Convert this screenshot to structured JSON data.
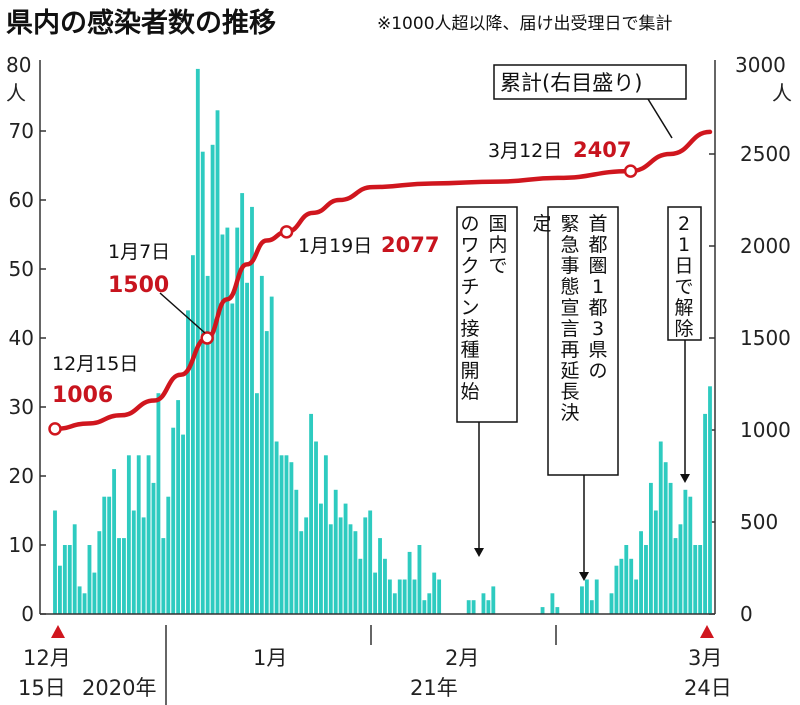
{
  "title": "県内の感染者数の推移",
  "subtitle": "※1000人超以降、届け出受理日で集計",
  "axis": {
    "left_unit_value": "80",
    "left_unit": "人",
    "right_unit_value": "3000",
    "right_unit": "人",
    "left_ticks": [
      "0",
      "10",
      "20",
      "30",
      "40",
      "50",
      "60",
      "70"
    ],
    "right_ticks": [
      "0",
      "500",
      "1000",
      "1500",
      "2000",
      "2500"
    ],
    "x_start_month": "12月",
    "x_start_day": "15日",
    "year_2020": "2020年",
    "month_1": "1月",
    "month_2": "2月",
    "year_21": "21年",
    "x_end_month": "3月",
    "x_end_day": "24日"
  },
  "annotations": {
    "cumulative_label": "累計(右目盛り)",
    "dec15_date": "12月15日",
    "dec15_value": "1006",
    "jan7_date": "1月7日",
    "jan7_value": "1500",
    "jan19_date": "1月19日",
    "jan19_value": "2077",
    "mar12_date": "3月12日",
    "mar12_value": "2407",
    "vaccine": "国内でのワクチン接種開始",
    "extend": "首都圏1都3県の緊急事態宣言再延長決定",
    "lift": "21日で解除"
  },
  "colors": {
    "bars": "#2ecbc0",
    "line": "#d0161e",
    "marker_fill": "#ffffff",
    "triangle": "#d0161e"
  },
  "chart_data": {
    "type": "bar+line",
    "x_range": [
      "2020-12-15",
      "2021-03-24"
    ],
    "left_axis": {
      "label": "人",
      "ylim": [
        0,
        80
      ]
    },
    "right_axis": {
      "label": "人",
      "ylim": [
        0,
        3000
      ]
    },
    "series": [
      {
        "name": "",
        "type": "bar",
        "axis": "left",
        "values": [
          15,
          7,
          10,
          10,
          13,
          4,
          3,
          10,
          6,
          12,
          17,
          17,
          21,
          11,
          11,
          23,
          15,
          23,
          14,
          23,
          19,
          32,
          11,
          17,
          27,
          31,
          26,
          44,
          52,
          79,
          67,
          49,
          68,
          73,
          55,
          56,
          45,
          56,
          61,
          48,
          59,
          32,
          49,
          41,
          46,
          25,
          23,
          23,
          22,
          18,
          12,
          14,
          29,
          25,
          16,
          23,
          13,
          18,
          14,
          16,
          13,
          12,
          8,
          14,
          15,
          6,
          11,
          8,
          5,
          3,
          5,
          5,
          9,
          5,
          10,
          2,
          3,
          6,
          5,
          0,
          0,
          0,
          0,
          0,
          2,
          2,
          0,
          3,
          2,
          4,
          0,
          0,
          0,
          0,
          0,
          0,
          0,
          0,
          0,
          1,
          0,
          3,
          1,
          0,
          0,
          0,
          0,
          4,
          5,
          2,
          5,
          0,
          0,
          3,
          7,
          8,
          10,
          8,
          5,
          12,
          10,
          19,
          15,
          25,
          22,
          19,
          11,
          13,
          18,
          17,
          10,
          10,
          29,
          33
        ]
      },
      {
        "name": "累計",
        "type": "line",
        "axis": "right",
        "points": [
          {
            "x": "2020-12-15",
            "y": 1006
          },
          {
            "x": "2020-12-20",
            "y": 1035
          },
          {
            "x": "2020-12-25",
            "y": 1080
          },
          {
            "x": "2020-12-30",
            "y": 1160
          },
          {
            "x": "2021-01-03",
            "y": 1300
          },
          {
            "x": "2021-01-07",
            "y": 1500
          },
          {
            "x": "2021-01-10",
            "y": 1710
          },
          {
            "x": "2021-01-13",
            "y": 1900
          },
          {
            "x": "2021-01-16",
            "y": 2030
          },
          {
            "x": "2021-01-19",
            "y": 2077
          },
          {
            "x": "2021-01-23",
            "y": 2180
          },
          {
            "x": "2021-01-27",
            "y": 2250
          },
          {
            "x": "2021-02-01",
            "y": 2320
          },
          {
            "x": "2021-02-10",
            "y": 2340
          },
          {
            "x": "2021-02-20",
            "y": 2350
          },
          {
            "x": "2021-03-01",
            "y": 2370
          },
          {
            "x": "2021-03-12",
            "y": 2407
          },
          {
            "x": "2021-03-18",
            "y": 2500
          },
          {
            "x": "2021-03-24",
            "y": 2620
          }
        ]
      }
    ]
  }
}
